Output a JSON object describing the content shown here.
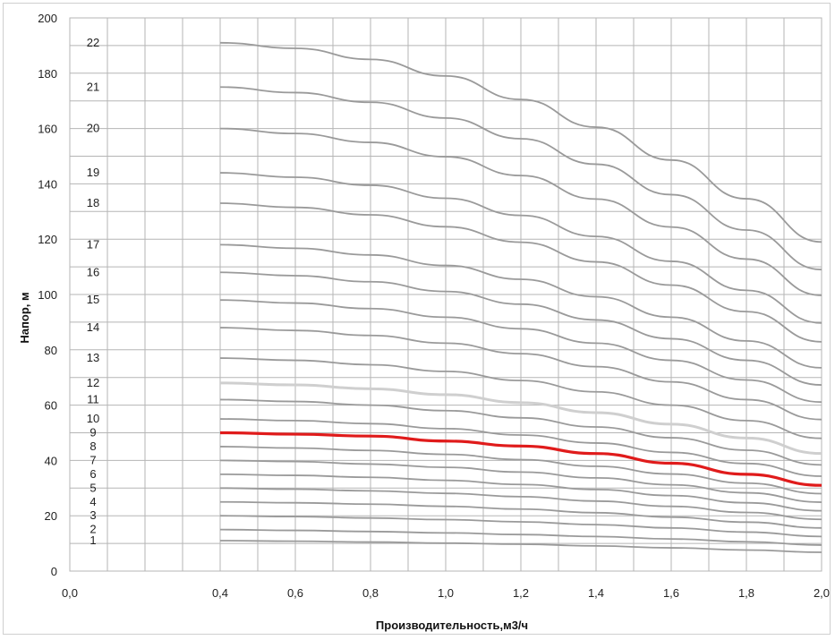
{
  "chart_data": {
    "type": "line",
    "xlabel": "Производительность,м3/ч",
    "ylabel": "Напор, м",
    "xlim": [
      0.0,
      2.0
    ],
    "ylim": [
      0,
      200
    ],
    "x_ticks": [
      "0,0",
      "0,4",
      "0,6",
      "0,8",
      "1,0",
      "1,2",
      "1,4",
      "1,6",
      "1,8",
      "2,0"
    ],
    "y_ticks": [
      "0",
      "20",
      "40",
      "60",
      "80",
      "100",
      "120",
      "140",
      "160",
      "180",
      "200"
    ],
    "grid": true,
    "highlight_color": "#e01b1b",
    "line_color": "#9a9a9a",
    "light_line_color": "#cfcfcf",
    "x": [
      0.4,
      0.6,
      0.8,
      1.0,
      1.2,
      1.4,
      1.6,
      1.8,
      2.0
    ],
    "series": [
      {
        "name": "1",
        "values": [
          11,
          10.8,
          10.5,
          10.1,
          9.7,
          9.1,
          8.4,
          7.6,
          6.8
        ]
      },
      {
        "name": "2",
        "values": [
          15,
          14.7,
          14.3,
          13.8,
          13.2,
          12.5,
          11.6,
          10.6,
          9.4
        ]
      },
      {
        "name": "3",
        "values": [
          20,
          19.7,
          19.2,
          18.6,
          17.8,
          16.8,
          15.6,
          14.1,
          12.5
        ]
      },
      {
        "name": "4",
        "values": [
          25,
          24.7,
          24.2,
          23.4,
          22.4,
          21.1,
          19.5,
          17.7,
          15.6
        ]
      },
      {
        "name": "5",
        "values": [
          30,
          29.6,
          29.0,
          28.1,
          26.9,
          25.3,
          23.4,
          21.2,
          18.7
        ]
      },
      {
        "name": "6",
        "values": [
          35,
          34.6,
          33.9,
          32.8,
          31.3,
          29.5,
          27.3,
          24.7,
          21.8
        ]
      },
      {
        "name": "7",
        "values": [
          40,
          39.6,
          38.7,
          37.5,
          35.8,
          33.7,
          31.2,
          28.3,
          24.9
        ]
      },
      {
        "name": "8",
        "values": [
          45,
          44.5,
          43.6,
          42.2,
          40.3,
          37.9,
          35.1,
          31.8,
          28.0
        ]
      },
      {
        "name": "9",
        "values": [
          50,
          49.5,
          48.8,
          47.0,
          45.2,
          42.5,
          39.0,
          35.0,
          31.0
        ]
      },
      {
        "name": "10",
        "values": [
          55,
          54.4,
          53.3,
          51.5,
          49.2,
          46.3,
          42.9,
          38.9,
          34.3
        ]
      },
      {
        "name": "11",
        "values": [
          62,
          61.3,
          60.0,
          58.0,
          55.4,
          52.1,
          48.2,
          43.7,
          38.4
        ]
      },
      {
        "name": "12",
        "values": [
          68,
          67.3,
          65.9,
          63.8,
          60.9,
          57.3,
          53.1,
          48.1,
          42.5
        ]
      },
      {
        "name": "13",
        "values": [
          77,
          76.2,
          74.6,
          72.2,
          68.9,
          64.8,
          60.0,
          54.4,
          48.0
        ]
      },
      {
        "name": "14",
        "values": [
          88,
          87.0,
          85.2,
          82.4,
          78.6,
          73.9,
          68.4,
          62.0,
          54.8
        ]
      },
      {
        "name": "15",
        "values": [
          98,
          96.9,
          94.9,
          91.8,
          87.6,
          82.4,
          76.2,
          69.1,
          61.1
        ]
      },
      {
        "name": "16",
        "values": [
          108,
          106.8,
          104.6,
          101.1,
          96.5,
          90.8,
          84.0,
          76.2,
          67.3
        ]
      },
      {
        "name": "17",
        "values": [
          118,
          116.7,
          114.3,
          110.5,
          105.5,
          99.2,
          91.8,
          83.2,
          73.5
        ]
      },
      {
        "name": "18",
        "values": [
          133,
          131.5,
          128.8,
          124.5,
          118.9,
          111.8,
          103.4,
          93.8,
          82.9
        ]
      },
      {
        "name": "19",
        "values": [
          144,
          142.4,
          139.5,
          134.8,
          128.6,
          121.0,
          112.0,
          101.5,
          89.7
        ]
      },
      {
        "name": "20",
        "values": [
          160,
          158.2,
          155.0,
          149.8,
          143.0,
          134.5,
          124.4,
          112.8,
          99.7
        ]
      },
      {
        "name": "21",
        "values": [
          175,
          173.0,
          169.5,
          163.8,
          156.3,
          147.1,
          136.1,
          123.3,
          109.0
        ]
      },
      {
        "name": "22",
        "values": [
          191,
          189.0,
          185.0,
          179.0,
          170.5,
          160.5,
          148.6,
          134.6,
          119.0
        ]
      }
    ],
    "highlight_series": "9",
    "light_series": "12"
  }
}
